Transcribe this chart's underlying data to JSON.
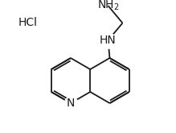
{
  "background_color": "#ffffff",
  "hcl_text": "HCl",
  "hcl_fontsize": 10,
  "nh2_fontsize": 10,
  "hn_fontsize": 10,
  "n_fontsize": 10,
  "line_color": "#1a1a1a",
  "line_width": 1.3
}
